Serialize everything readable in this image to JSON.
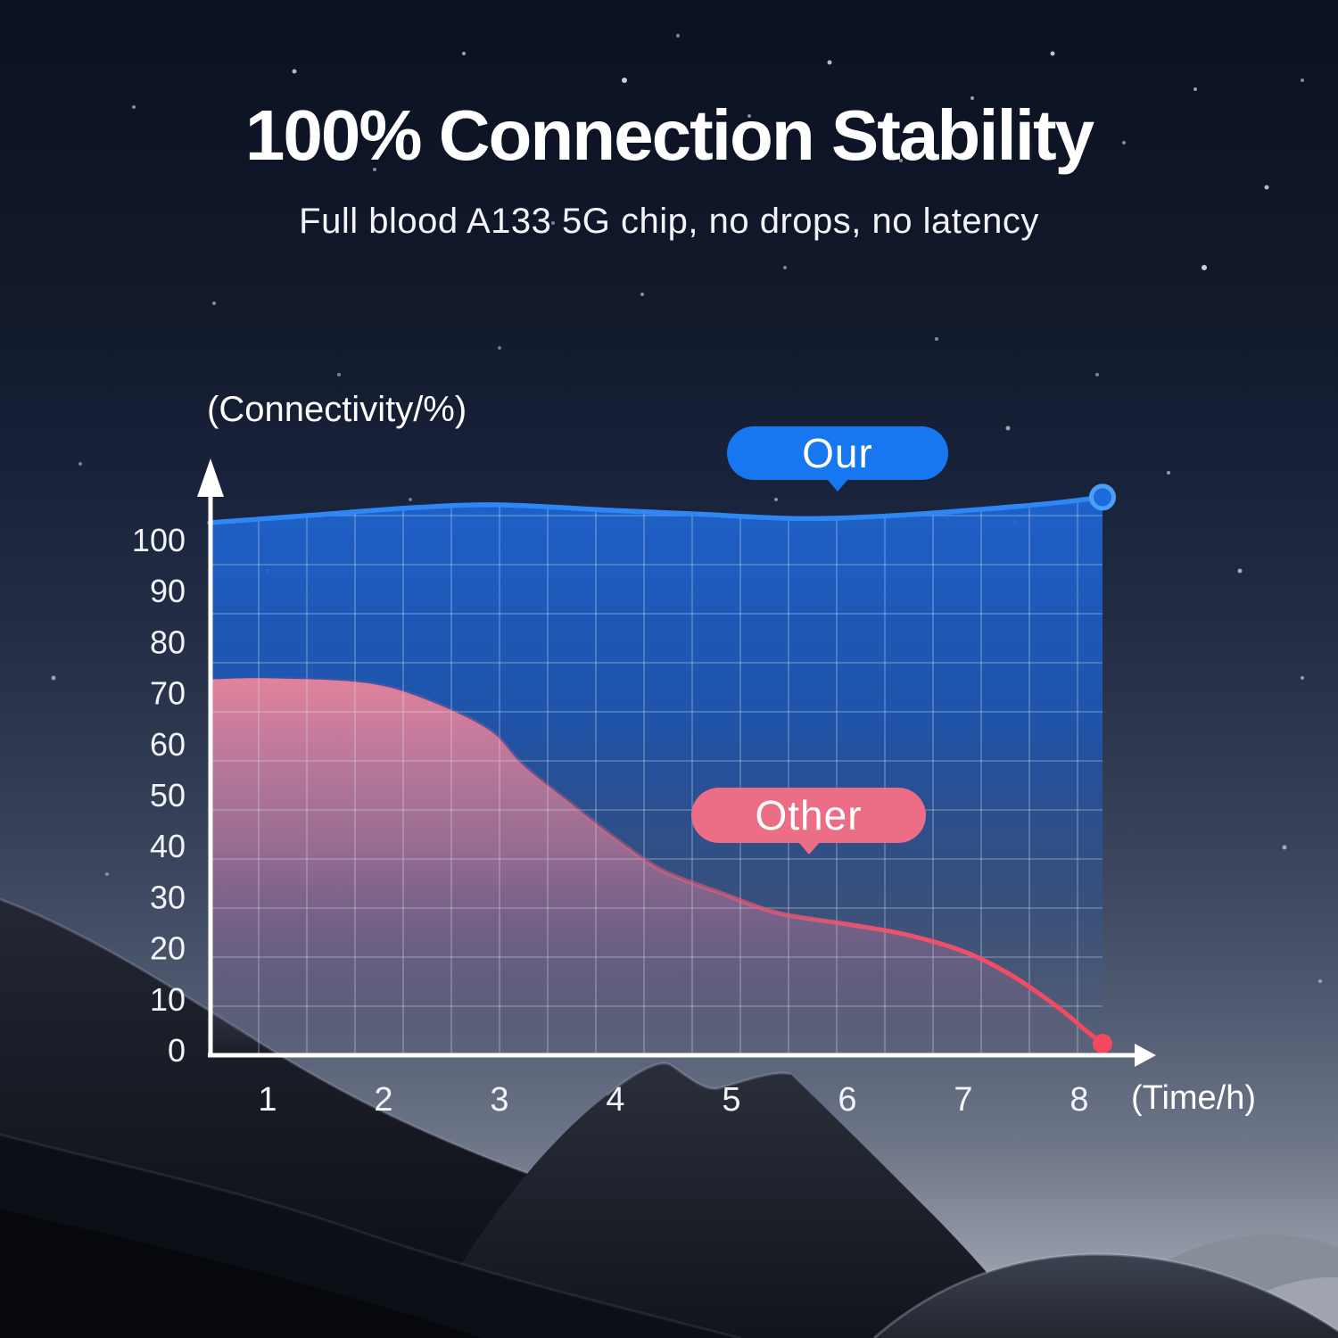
{
  "header": {
    "title": "100% Connection Stability",
    "subtitle": "Full blood A133 5G chip, no drops, no latency"
  },
  "legend": {
    "our": "Our",
    "other": "Other"
  },
  "chart_data": {
    "type": "area",
    "title": "100% Connection Stability",
    "xlabel": "(Time/h)",
    "ylabel": "(Connectivity/%)",
    "x_ticks": [
      1,
      2,
      3,
      4,
      5,
      6,
      7,
      8
    ],
    "y_ticks": [
      0,
      10,
      20,
      30,
      40,
      50,
      60,
      70,
      80,
      90,
      100
    ],
    "xlim": [
      0.5,
      8.6
    ],
    "ylim": [
      0,
      110
    ],
    "grid": true,
    "legend_position": "inline-badges",
    "series": [
      {
        "name": "Our",
        "color": "#2f87f6",
        "points": [
          [
            0.5,
            103.5
          ],
          [
            1.4,
            105.0
          ],
          [
            2.3,
            106.5
          ],
          [
            3.0,
            107.0
          ],
          [
            3.9,
            106.0
          ],
          [
            4.7,
            105.2
          ],
          [
            5.6,
            104.3
          ],
          [
            6.4,
            104.9
          ],
          [
            7.2,
            106.2
          ],
          [
            7.8,
            107.4
          ],
          [
            8.2,
            108.5
          ]
        ]
      },
      {
        "name": "Other",
        "color": "#f2536e",
        "points": [
          [
            0.5,
            72.8
          ],
          [
            1.0,
            73.0
          ],
          [
            1.8,
            72.2
          ],
          [
            2.3,
            69.4
          ],
          [
            2.9,
            63.0
          ],
          [
            3.2,
            56.0
          ],
          [
            3.6,
            48.7
          ],
          [
            4.0,
            41.6
          ],
          [
            4.4,
            35.4
          ],
          [
            4.9,
            31.0
          ],
          [
            5.4,
            27.0
          ],
          [
            6.0,
            24.8
          ],
          [
            6.5,
            22.8
          ],
          [
            7.0,
            19.5
          ],
          [
            7.4,
            15.0
          ],
          [
            7.8,
            8.8
          ],
          [
            8.05,
            4.1
          ],
          [
            8.2,
            1.4
          ]
        ]
      }
    ]
  },
  "colors": {
    "accent_blue": "#1677f0",
    "our_line": "#2f87f6",
    "our_dot_fill": "#1b6ade",
    "our_dot_ring": "#4d9ef5",
    "other_badge": "#ec6e86",
    "other_line": "#f2536e",
    "other_dot": "#f4485f",
    "axis": "#ffffff",
    "tick_text": "#f2f4f8",
    "grid": "rgba(225,238,255,0.30)"
  }
}
